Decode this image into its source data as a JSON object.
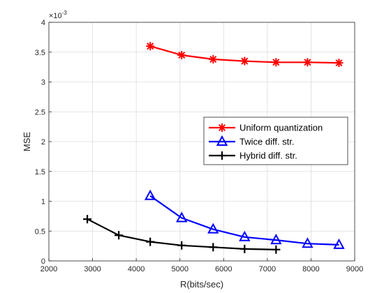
{
  "chart_data": {
    "type": "line",
    "xlabel": "R(bits/sec)",
    "ylabel": "MSE",
    "y_exponent_label": "×10",
    "y_exponent_power": "-3",
    "xlim": [
      2000,
      9000
    ],
    "ylim": [
      0,
      4
    ],
    "xticks": [
      "2000",
      "3000",
      "4000",
      "5000",
      "6000",
      "7000",
      "8000",
      "9000"
    ],
    "yticks": [
      "0",
      "0.5",
      "1",
      "1.5",
      "2",
      "2.5",
      "3",
      "3.5",
      "4"
    ],
    "grid": true,
    "legend_position": "right",
    "series": [
      {
        "name": "Uniform quantization",
        "color": "#ff0000",
        "marker": "asterisk",
        "x": [
          4320,
          5040,
          5760,
          6480,
          7200,
          7920,
          8640
        ],
        "y": [
          3.6,
          3.45,
          3.38,
          3.35,
          3.33,
          3.33,
          3.32
        ]
      },
      {
        "name": "Twice diff. str.",
        "color": "#0000ff",
        "marker": "triangle",
        "x": [
          4320,
          5040,
          5760,
          6480,
          7200,
          7920,
          8640
        ],
        "y": [
          1.09,
          0.72,
          0.53,
          0.4,
          0.35,
          0.29,
          0.27
        ]
      },
      {
        "name": "Hybrid diff. str.",
        "color": "#000000",
        "marker": "plus",
        "x": [
          2880,
          3600,
          4320,
          5040,
          5760,
          6480,
          7200
        ],
        "y": [
          0.7,
          0.43,
          0.32,
          0.26,
          0.23,
          0.2,
          0.19
        ]
      }
    ]
  }
}
